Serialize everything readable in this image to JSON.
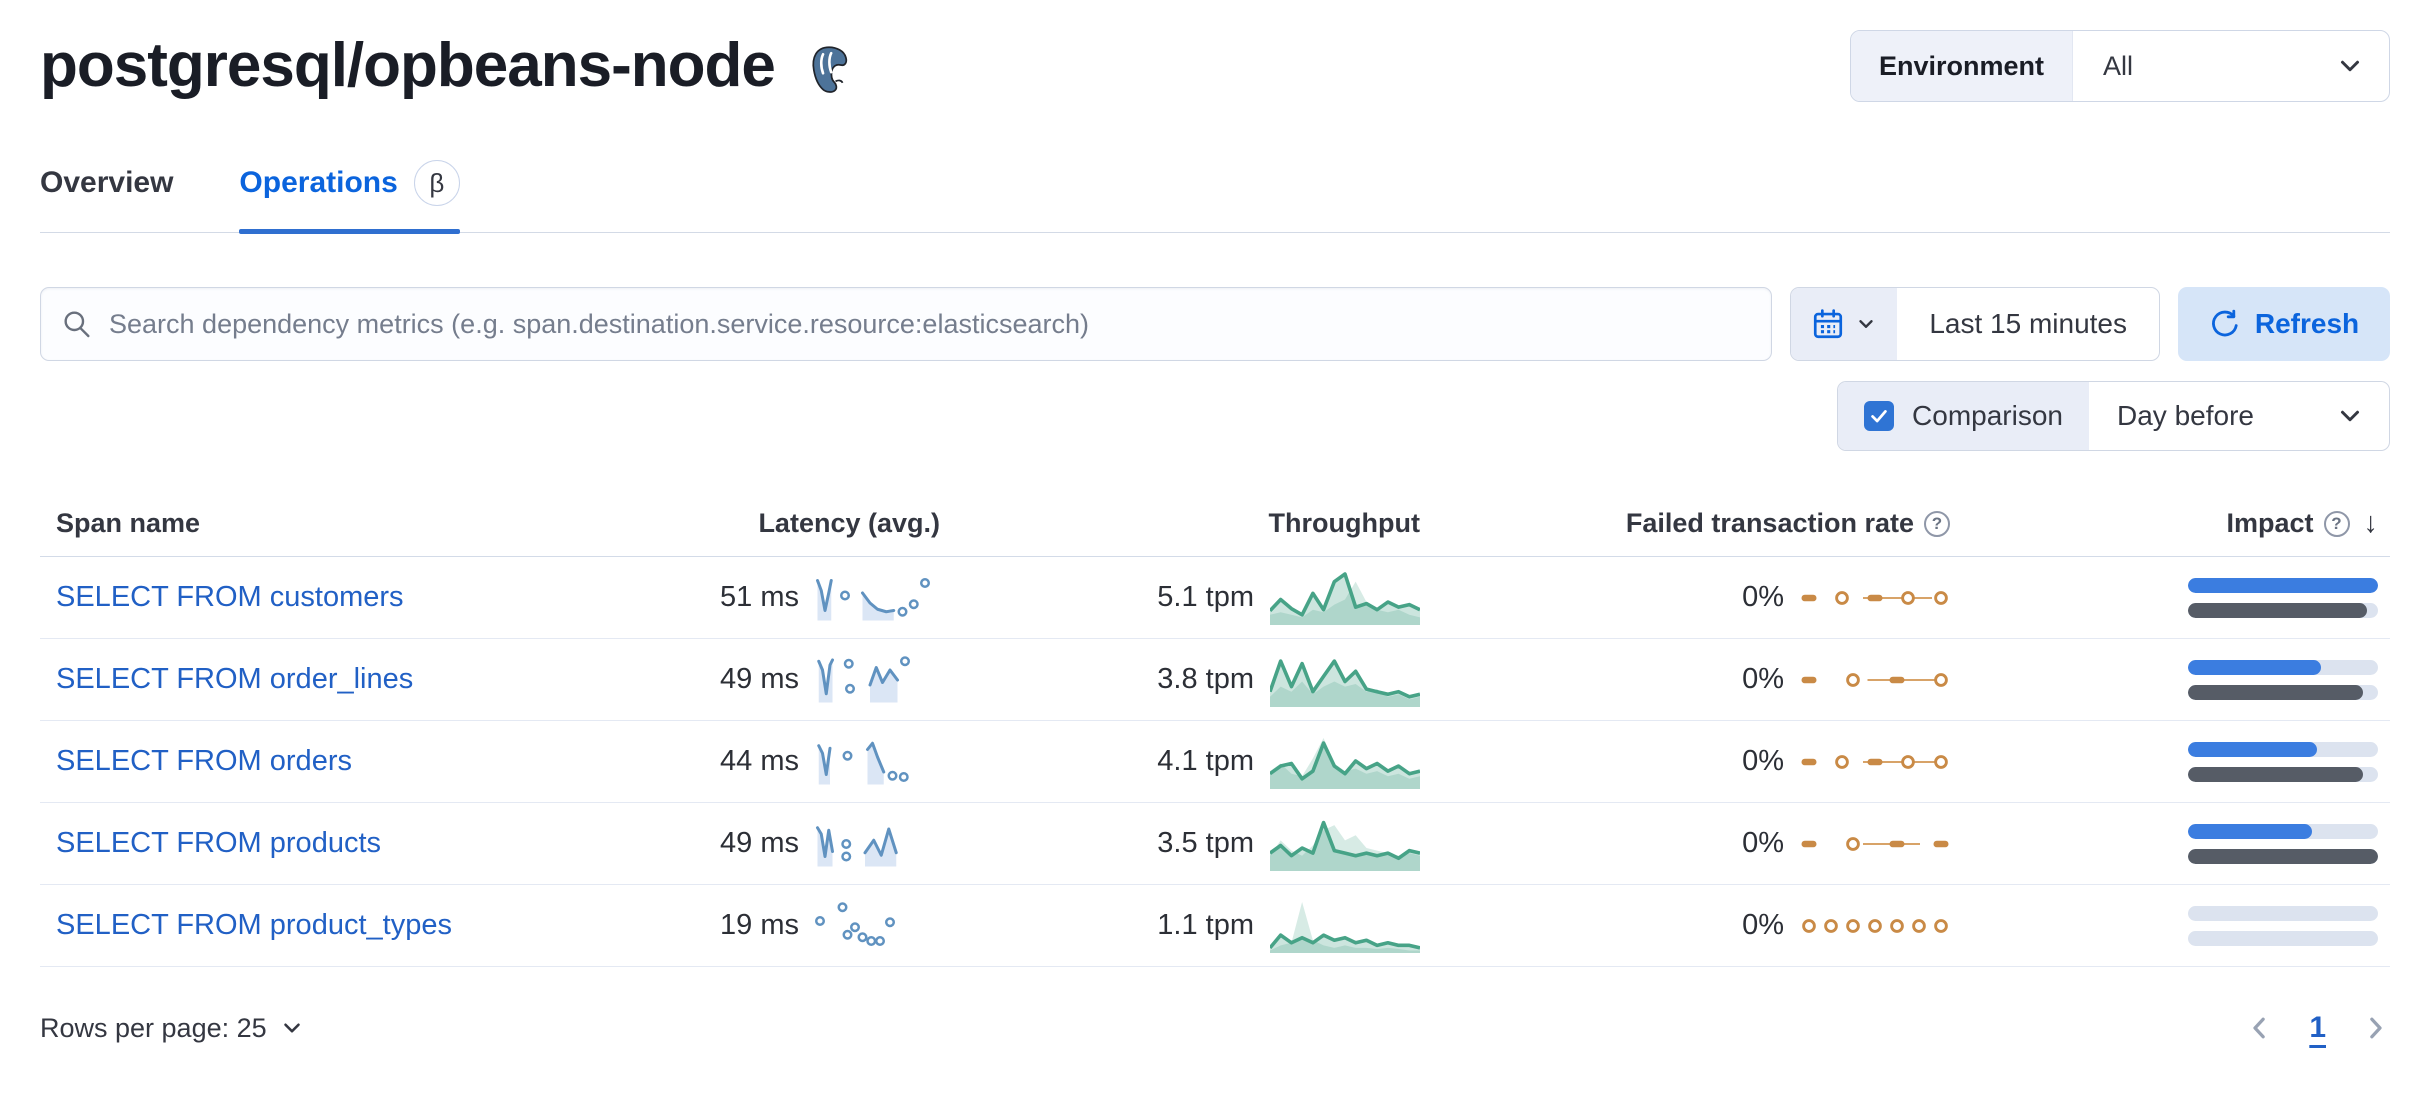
{
  "header": {
    "title": "postgresql/opbeans-node"
  },
  "environment": {
    "label": "Environment",
    "value": "All"
  },
  "tabs": [
    {
      "label": "Overview"
    },
    {
      "label": "Operations",
      "beta": "β"
    }
  ],
  "toolbar": {
    "search_placeholder": "Search dependency metrics (e.g. span.destination.service.resource:elasticsearch)",
    "time_range": "Last 15 minutes",
    "refresh_label": "Refresh"
  },
  "comparison": {
    "label": "Comparison",
    "value": "Day before",
    "checked": true
  },
  "table": {
    "columns": [
      "Span name",
      "Latency (avg.)",
      "Throughput",
      "Failed transaction rate",
      "Impact"
    ],
    "help_glyph": "?",
    "sort_glyph": "↓",
    "rows": [
      {
        "span_name": "SELECT FROM customers",
        "latency": "51 ms",
        "throughput": "5.1 tpm",
        "failed_rate": "0%",
        "latency_spark": {
          "segments": [
            [
              [
                2,
                6
              ],
              [
                5,
                14
              ],
              [
                8,
                30
              ],
              [
                11,
                16
              ],
              [
                13,
                6
              ]
            ],
            [
              [
                38,
                16
              ],
              [
                44,
                24
              ],
              [
                50,
                29
              ],
              [
                57,
                31
              ],
              [
                63,
                30
              ]
            ]
          ],
          "dots": [
            [
              24,
              18
            ],
            [
              70,
              31
            ],
            [
              79,
              25
            ],
            [
              88,
              8
            ]
          ]
        },
        "throughput_spark": {
          "current": [
            0.28,
            0.5,
            0.32,
            0.2,
            0.62,
            0.3,
            0.85,
            1.0,
            0.35,
            0.42,
            0.3,
            0.45,
            0.35,
            0.4,
            0.3
          ],
          "comparison": [
            0.2,
            0.25,
            0.2,
            0.15,
            0.3,
            0.25,
            0.4,
            0.5,
            0.85,
            0.45,
            0.3,
            0.25,
            0.3,
            0.2,
            0.15
          ]
        },
        "failed_spark": {
          "tokens": [
            "dash",
            "circle",
            "dash",
            "circle",
            "circle"
          ],
          "line": [
            0.42,
            0.88
          ]
        },
        "impact": {
          "current": 100,
          "previous": 94
        }
      },
      {
        "span_name": "SELECT FROM order_lines",
        "latency": "49 ms",
        "throughput": "3.8 tpm",
        "failed_rate": "0%",
        "latency_spark": {
          "segments": [
            [
              [
                3,
                5
              ],
              [
                6,
                12
              ],
              [
                9,
                31
              ],
              [
                12,
                8
              ],
              [
                14,
                4
              ]
            ],
            [
              [
                44,
                24
              ],
              [
                49,
                10
              ],
              [
                54,
                22
              ],
              [
                60,
                12
              ],
              [
                66,
                20
              ]
            ]
          ],
          "dots": [
            [
              27,
              7
            ],
            [
              28,
              27
            ],
            [
              72,
              5
            ]
          ]
        },
        "throughput_spark": {
          "current": [
            0.3,
            0.9,
            0.4,
            0.85,
            0.3,
            0.6,
            0.9,
            0.5,
            0.7,
            0.35,
            0.3,
            0.25,
            0.3,
            0.2,
            0.25
          ],
          "comparison": [
            0.2,
            0.4,
            0.3,
            0.5,
            0.25,
            0.4,
            0.5,
            0.4,
            0.45,
            0.3,
            0.35,
            0.2,
            0.25,
            0.15,
            0.2
          ]
        },
        "failed_spark": {
          "tokens": [
            "dash",
            "circle",
            "dash",
            "circle"
          ],
          "line": [
            0.45,
            0.92
          ]
        },
        "impact": {
          "current": 70,
          "previous": 92
        }
      },
      {
        "span_name": "SELECT FROM orders",
        "latency": "44 ms",
        "throughput": "4.1 tpm",
        "failed_rate": "0%",
        "latency_spark": {
          "segments": [
            [
              [
                3,
                7
              ],
              [
                6,
                13
              ],
              [
                9,
                30
              ],
              [
                12,
                9
              ]
            ],
            [
              [
                42,
                10
              ],
              [
                46,
                5
              ],
              [
                50,
                16
              ],
              [
                55,
                28
              ]
            ]
          ],
          "dots": [
            [
              26,
              15
            ],
            [
              62,
              31
            ],
            [
              71,
              32
            ]
          ]
        },
        "throughput_spark": {
          "current": [
            0.3,
            0.45,
            0.5,
            0.2,
            0.35,
            0.9,
            0.45,
            0.3,
            0.55,
            0.4,
            0.5,
            0.35,
            0.45,
            0.3,
            0.35
          ],
          "comparison": [
            0.35,
            0.5,
            0.3,
            0.25,
            0.6,
            1.0,
            0.5,
            0.35,
            0.4,
            0.3,
            0.35,
            0.25,
            0.3,
            0.2,
            0.25
          ]
        },
        "failed_spark": {
          "tokens": [
            "dash",
            "circle",
            "dash",
            "circle",
            "circle"
          ],
          "line": [
            0.42,
            0.9
          ]
        },
        "impact": {
          "current": 68,
          "previous": 92
        }
      },
      {
        "span_name": "SELECT FROM products",
        "latency": "49 ms",
        "throughput": "3.5 tpm",
        "failed_rate": "0%",
        "latency_spark": {
          "segments": [
            [
              [
                2,
                7
              ],
              [
                5,
                12
              ],
              [
                8,
                30
              ],
              [
                11,
                9
              ],
              [
                14,
                26
              ]
            ],
            [
              [
                40,
                27
              ],
              [
                47,
                17
              ],
              [
                53,
                29
              ],
              [
                59,
                8
              ],
              [
                65,
                27
              ]
            ]
          ],
          "dots": [
            [
              25,
              20
            ],
            [
              25,
              30
            ]
          ]
        },
        "throughput_spark": {
          "current": [
            0.35,
            0.5,
            0.3,
            0.45,
            0.35,
            0.95,
            0.4,
            0.35,
            0.3,
            0.35,
            0.3,
            0.35,
            0.25,
            0.4,
            0.35
          ],
          "comparison": [
            0.3,
            0.6,
            0.4,
            0.3,
            0.5,
            0.8,
            0.9,
            0.6,
            0.7,
            0.45,
            0.4,
            0.35,
            0.3,
            0.35,
            0.3
          ]
        },
        "failed_spark": {
          "tokens": [
            "dash",
            "circle",
            "dash",
            "dash"
          ],
          "line": [
            0.42,
            0.8
          ]
        },
        "impact": {
          "current": 65,
          "previous": 100
        }
      },
      {
        "span_name": "SELECT FROM product_types",
        "latency": "19 ms",
        "throughput": "1.1 tpm",
        "failed_rate": "0%",
        "latency_spark": {
          "segments": [],
          "dots": [
            [
              4,
              16
            ],
            [
              22,
              5
            ],
            [
              26,
              27
            ],
            [
              32,
              21
            ],
            [
              38,
              29
            ],
            [
              45,
              32
            ],
            [
              52,
              32
            ],
            [
              60,
              17
            ]
          ]
        },
        "throughput_spark": {
          "current": [
            0.1,
            0.35,
            0.2,
            0.3,
            0.2,
            0.35,
            0.25,
            0.3,
            0.2,
            0.25,
            0.15,
            0.2,
            0.15,
            0.15,
            0.1
          ],
          "comparison": [
            0.05,
            0.15,
            0.2,
            1.0,
            0.25,
            0.15,
            0.1,
            0.15,
            0.1,
            0.1,
            0.08,
            0.1,
            0.08,
            0.05,
            0.05
          ]
        },
        "failed_spark": {
          "tokens": [
            "circle",
            "circle",
            "circle",
            "circle",
            "circle",
            "circle",
            "circle"
          ],
          "line": null
        },
        "impact": {
          "current": 0,
          "previous": 0
        }
      }
    ]
  },
  "footer": {
    "rows_per_page": "Rows per page: 25",
    "page": "1"
  },
  "colors": {
    "primary": "#0b64dd",
    "link": "#2160c5",
    "latency_line": "#6092c0",
    "throughput_line": "#47a387",
    "failed_orange": "#c98a46",
    "impact_current": "#3b7de0",
    "impact_previous": "#565c66",
    "bar_track": "#dce3ef"
  }
}
